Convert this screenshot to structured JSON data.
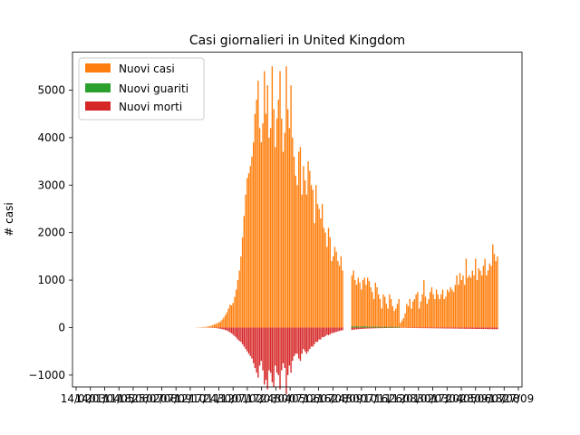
{
  "chart_data": {
    "type": "bar",
    "title": "Casi giornalieri in United Kingdom",
    "xlabel": "",
    "ylabel": "# casi",
    "ylim": [
      -1250,
      5800
    ],
    "grid": false,
    "legend_placement": "top-left",
    "yticks": [
      -1000,
      0,
      1000,
      2000,
      3000,
      4000,
      5000
    ],
    "yticks_labels": [
      "−1000",
      "0",
      "1000",
      "2000",
      "3000",
      "4000",
      "5000"
    ],
    "xtick_labels": [
      "14/02",
      "14/03",
      "01/04",
      "11/05",
      "18/06",
      "25/07",
      "02/08",
      "07/09",
      "12/10",
      "17/11",
      "24/12",
      "30/01",
      "07/02",
      "17/03",
      "24/04",
      "30/05",
      "07/06",
      "12/07",
      "16/08",
      "24/09",
      "30/10",
      "07/11",
      "16/12",
      "26/01",
      "08/02",
      "30/03",
      "17/04",
      "20/05",
      "28/06",
      "09/07",
      "18/08",
      "27/09"
    ],
    "series": [
      {
        "name": "Nuovi casi",
        "color": "#ff7f0e",
        "segments": [
          {
            "start_day": 0,
            "values": [
              0,
              0,
              0,
              0,
              0,
              0,
              0,
              0,
              0,
              0,
              0,
              0,
              0,
              0,
              0,
              0,
              0,
              0,
              0,
              0,
              0,
              0,
              0,
              0,
              0,
              0,
              0,
              0,
              0,
              0,
              0,
              0,
              0,
              0,
              0,
              0,
              0,
              0,
              0,
              0
            ]
          },
          {
            "start_day": 40,
            "values": [
              0,
              0,
              0,
              0,
              0,
              0,
              0,
              0,
              0,
              0,
              0,
              0,
              0,
              0,
              0,
              0,
              0,
              0,
              0,
              0,
              0,
              0,
              0,
              0,
              0,
              0,
              0,
              0,
              0,
              0
            ]
          },
          {
            "start_day": 70,
            "values": [
              3,
              3,
              5,
              8,
              10,
              12,
              14,
              18,
              24,
              32,
              40,
              52,
              66,
              80,
              95,
              110,
              130,
              170,
              210,
              260,
              320,
              400,
              480,
              470,
              520,
              650,
              800,
              1000,
              1200,
              1500,
              1900,
              2350,
              2800,
              3150,
              3250,
              3400,
              3600,
              3900,
              4500,
              4800,
              5200,
              4200,
              3900,
              4300,
              5400,
              4500,
              5100,
              4000,
              4200,
              5500,
              4600,
              3800,
              4400,
              4800,
              5400,
              4400,
              3700,
              4100,
              5500,
              4600,
              4200,
              5100,
              4000,
              3600,
              3200,
              3000,
              3700,
              3800,
              2800,
              3400,
              3100,
              2800,
              3500,
              3300,
              3000,
              2900,
              2200,
              3000,
              2600,
              2500,
              2300,
              2600,
              2100,
              2000,
              1700,
              2100,
              1900,
              1400,
              1500,
              1700,
              1600,
              1400,
              1300,
              1500,
              1200
            ]
          },
          {
            "start_day": 170,
            "values": [
              1100,
              1200,
              1000,
              900,
              1050,
              950,
              800,
              1000,
              1050,
              900,
              1050,
              980,
              850,
              750,
              600,
              950,
              850,
              700,
              600,
              400,
              700,
              650,
              500,
              400,
              700,
              600,
              450,
              350,
              400,
              500,
              600
            ]
          },
          {
            "start_day": 201,
            "values": [
              100,
              150,
              200,
              300,
              500,
              450,
              600,
              400,
              550,
              600,
              700,
              750,
              400,
              550,
              700,
              1000,
              650,
              500,
              600,
              750,
              850,
              700,
              600,
              800,
              700,
              600,
              700,
              800,
              600,
              650,
              800,
              750,
              850,
              800,
              750,
              900
            ]
          },
          {
            "start_day": 237,
            "values": [
              1100,
              900,
              1150,
              1000,
              1100,
              900,
              1450,
              1050,
              1100,
              1050,
              1200,
              1100,
              1450,
              1000,
              1250,
              1200,
              1100,
              1300,
              1450,
              1100,
              1200,
              1350,
              1300,
              1750,
              1550,
              1400,
              1500
            ]
          }
        ]
      },
      {
        "name": "Nuovi guariti",
        "color": "#2ca02c",
        "segments": [
          {
            "start_day": 170,
            "values": [
              30,
              20,
              25,
              30,
              20,
              15,
              25,
              20,
              30,
              25,
              20,
              15,
              20,
              25,
              15,
              20,
              20,
              15,
              20,
              10,
              15,
              20,
              15,
              10,
              15,
              20,
              10,
              15,
              15,
              10,
              20
            ]
          }
        ]
      },
      {
        "name": "Nuovi morti",
        "color": "#d62728",
        "segments": [
          {
            "start_day": 0,
            "values": [
              0,
              0,
              0,
              0,
              0,
              0,
              0,
              0,
              0,
              0,
              0,
              0,
              0,
              0,
              0,
              0,
              0,
              0,
              0,
              0,
              0,
              0,
              0,
              0,
              0,
              0,
              0,
              0,
              0,
              0,
              0,
              0,
              0,
              0,
              0,
              0,
              0,
              0,
              0,
              0
            ]
          },
          {
            "start_day": 40,
            "values": [
              0,
              0,
              0,
              0,
              0,
              0,
              0,
              0,
              0,
              0,
              0,
              0,
              0,
              0,
              0,
              0,
              0,
              0,
              0,
              0,
              0,
              0,
              0,
              0,
              0,
              0,
              0,
              0,
              0,
              0
            ]
          },
          {
            "start_day": 70,
            "values": [
              0,
              0,
              0,
              0,
              0,
              -1,
              -1,
              -2,
              -2,
              -3,
              -4,
              -5,
              -7,
              -10,
              -14,
              -20,
              -25,
              -33,
              -40,
              -50,
              -60,
              -80,
              -100,
              -120,
              -150,
              -180,
              -210,
              -250,
              -280,
              -300,
              -350,
              -400,
              -450,
              -500,
              -550,
              -600,
              -650,
              -750,
              -850,
              -950,
              -1050,
              -800,
              -700,
              -900,
              -1200,
              -1100,
              -1300,
              -900,
              -950,
              -1150,
              -1250,
              -800,
              -950,
              -1000,
              -1300,
              -900,
              -750,
              -850,
              -1400,
              -1000,
              -800,
              -950,
              -700,
              -600,
              -550,
              -550,
              -650,
              -700,
              -550,
              -450,
              -500,
              -550,
              -500,
              -450,
              -400,
              -400,
              -350,
              -300,
              -300,
              -250,
              -250,
              -200,
              -200,
              -180,
              -150,
              -160,
              -140,
              -120,
              -110,
              -100,
              -90,
              -80,
              -70,
              -60,
              -55
            ]
          },
          {
            "start_day": 170,
            "values": [
              -50,
              -45,
              -40,
              -35,
              -35,
              -30,
              -30,
              -25,
              -25,
              -22,
              -20,
              -20,
              -18,
              -18,
              -15,
              -15,
              -14,
              -13,
              -12,
              -12,
              -11,
              -10,
              -10,
              -9,
              -9,
              -8,
              -8,
              -7,
              -7,
              -6,
              -6
            ]
          },
          {
            "start_day": 201,
            "values": [
              -6,
              -5,
              -5,
              -6,
              -7,
              -7,
              -8,
              -8,
              -9,
              -9,
              -10,
              -10,
              -11,
              -11,
              -12,
              -12,
              -12,
              -13,
              -13,
              -14,
              -14,
              -15,
              -15,
              -16,
              -16,
              -17,
              -17,
              -18,
              -18,
              -19,
              -19,
              -20,
              -20,
              -20,
              -21,
              -21
            ]
          },
          {
            "start_day": 237,
            "values": [
              -22,
              -22,
              -23,
              -23,
              -24,
              -24,
              -25,
              -25,
              -26,
              -26,
              -27,
              -27,
              -28,
              -28,
              -29,
              -29,
              -30,
              -30,
              -31,
              -31,
              -32,
              -32,
              -33,
              -33,
              -34,
              -34,
              -35
            ]
          }
        ]
      }
    ]
  }
}
